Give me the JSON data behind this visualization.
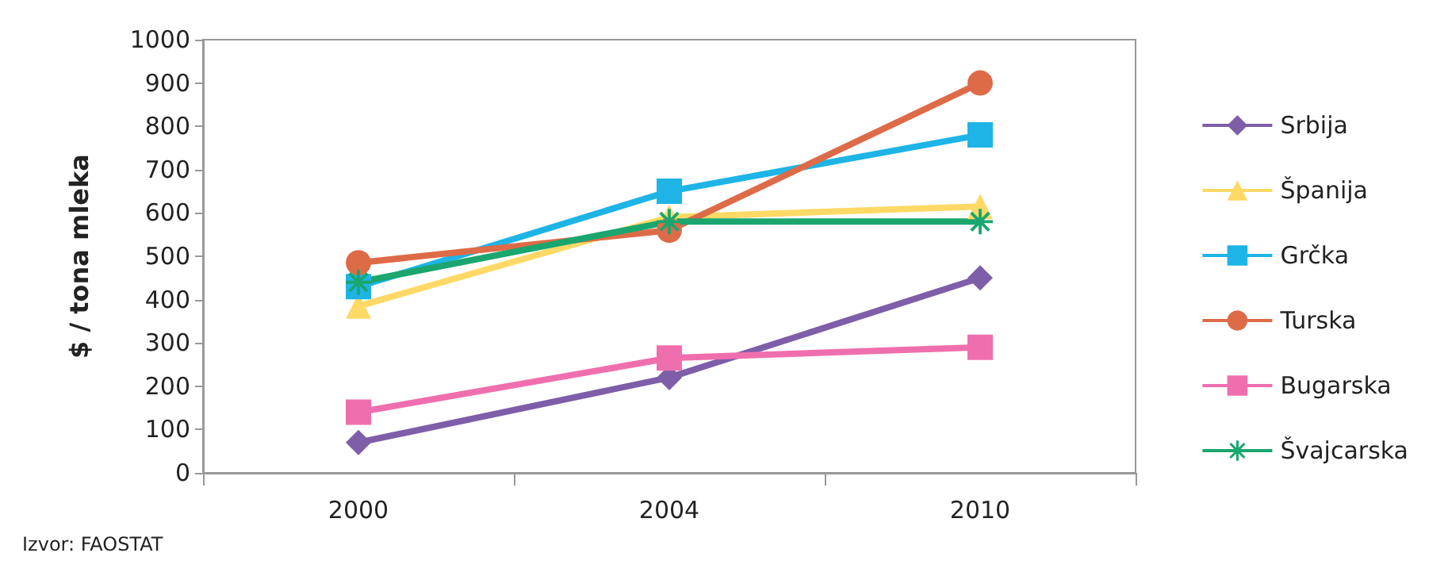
{
  "chart_data": {
    "type": "line",
    "ylabel": "$ / tona mleka",
    "categories": [
      "2000",
      "2004",
      "2010"
    ],
    "series": [
      {
        "name": "Srbija",
        "color": "#7e5ea8",
        "marker": "diamond",
        "values": [
          70,
          220,
          450
        ]
      },
      {
        "name": "Španija",
        "color": "#ffd966",
        "marker": "triangle",
        "values": [
          385,
          590,
          615
        ]
      },
      {
        "name": "Grčka",
        "color": "#1eb4e6",
        "marker": "square",
        "values": [
          430,
          650,
          780
        ]
      },
      {
        "name": "Turska",
        "color": "#de6b48",
        "marker": "circle",
        "values": [
          485,
          560,
          900
        ]
      },
      {
        "name": "Bugarska",
        "color": "#ef6fae",
        "marker": "square",
        "values": [
          140,
          265,
          290
        ]
      },
      {
        "name": "Švajcarska",
        "color": "#1aa66e",
        "marker": "cross",
        "values": [
          440,
          580,
          580
        ]
      }
    ],
    "ylim": [
      0,
      1000
    ],
    "yticks": [
      0,
      100,
      200,
      300,
      400,
      500,
      600,
      700,
      800,
      900,
      1000
    ],
    "grid": false,
    "legend": "right",
    "annotations": [
      "Izvor: FAOSTAT"
    ]
  }
}
